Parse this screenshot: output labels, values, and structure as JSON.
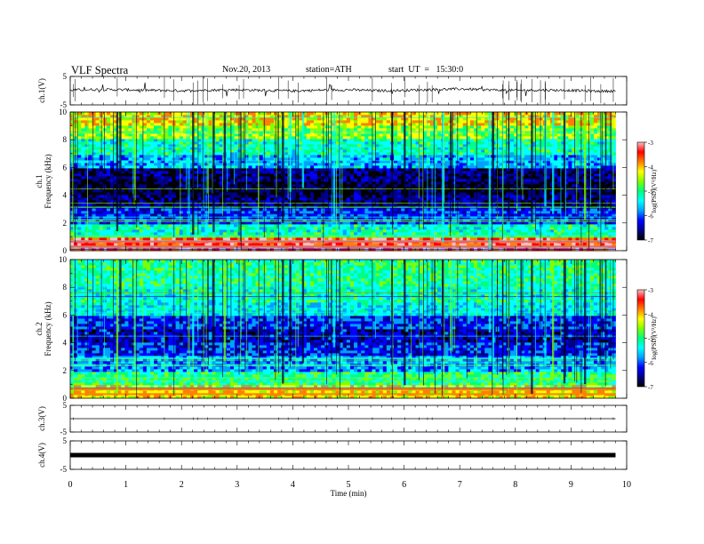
{
  "header": {
    "title": "VLF Spectra",
    "date": "Nov.20, 2013",
    "station": "station=ATH",
    "start": "start  UT  =   15:30:0"
  },
  "chart_data": [
    {
      "type": "line",
      "panel": "ch1-waveform",
      "ylabel": "ch.1(V)",
      "yticks": [
        "5",
        "-5"
      ],
      "ylim": [
        -5,
        5
      ],
      "x": [
        0,
        0.5,
        1,
        1.5,
        2,
        2.5,
        3,
        3.5,
        4,
        4.5,
        5,
        5.5,
        6,
        6.5,
        7,
        7.5,
        8,
        8.5,
        9,
        9.5,
        9.8
      ],
      "y": [
        0.2,
        0.4,
        0.3,
        0.1,
        0.0,
        0.2,
        0.3,
        0.1,
        -0.1,
        0.2,
        0.3,
        0.0,
        0.1,
        0.4,
        0.6,
        0.3,
        0.1,
        0.2,
        0.1,
        -0.2,
        -0.1
      ]
    },
    {
      "type": "heatmap",
      "panel": "ch1-spectrogram",
      "ylabel": "ch.1\nFrequency (kHz)",
      "yticks": [
        "0",
        "2",
        "4",
        "6",
        "8",
        "10"
      ],
      "ylim": [
        0,
        10
      ],
      "colorbar": {
        "label": "log(PSD)(V²/Hz)",
        "ticks": [
          "-3",
          "-4",
          "-5",
          "-6",
          "-7"
        ],
        "range": [
          -7,
          -3
        ]
      },
      "freq_kHz": [
        0.5,
        1.5,
        2.5,
        3.5,
        4.5,
        5.5,
        6.5,
        7.5,
        8.5,
        9.5
      ],
      "mean_log_psd": [
        -3.6,
        -5.2,
        -6.0,
        -6.5,
        -6.7,
        -6.5,
        -5.6,
        -5.2,
        -4.6,
        -4.2
      ]
    },
    {
      "type": "heatmap",
      "panel": "ch2-spectrogram",
      "ylabel": "ch.2\nFrequency (kHz)",
      "yticks": [
        "0",
        "2",
        "4",
        "6",
        "8",
        "10"
      ],
      "ylim": [
        0,
        10
      ],
      "colorbar": {
        "label": "log(PSD)(V²/Hz)",
        "ticks": [
          "-3",
          "-4",
          "-5",
          "-6",
          "-7"
        ],
        "range": [
          -7,
          -3
        ]
      },
      "freq_kHz": [
        0.5,
        1.5,
        2.5,
        3.5,
        4.5,
        5.5,
        6.5,
        7.5,
        8.5,
        9.5
      ],
      "mean_log_psd": [
        -4.2,
        -5.0,
        -5.7,
        -6.1,
        -6.3,
        -6.0,
        -5.4,
        -5.2,
        -5.1,
        -5.0
      ]
    },
    {
      "type": "line",
      "panel": "ch3-waveform",
      "ylabel": "ch.3(V)",
      "yticks": [
        "5",
        "-5"
      ],
      "ylim": [
        -5,
        5
      ],
      "x": [
        0,
        9.8
      ],
      "y": [
        0,
        0
      ]
    },
    {
      "type": "line",
      "panel": "ch4-waveform",
      "ylabel": "ch.4(V)",
      "yticks": [
        "5",
        "-5"
      ],
      "ylim": [
        -5,
        5
      ],
      "x": [
        0,
        9.8
      ],
      "y": [
        0,
        0
      ]
    }
  ],
  "xaxis": {
    "label": "Time  (min)",
    "ticks": [
      "0",
      "1",
      "2",
      "3",
      "4",
      "5",
      "6",
      "7",
      "8",
      "9",
      "10"
    ],
    "xlim": [
      0,
      10
    ],
    "data_end": 9.8
  },
  "colors": {
    "palette": [
      "#000000",
      "#00008b",
      "#0000ff",
      "#00a0ff",
      "#00ffff",
      "#00ff80",
      "#80ff00",
      "#ffff00",
      "#ff8000",
      "#ff0000",
      "#ffc0c0"
    ]
  }
}
